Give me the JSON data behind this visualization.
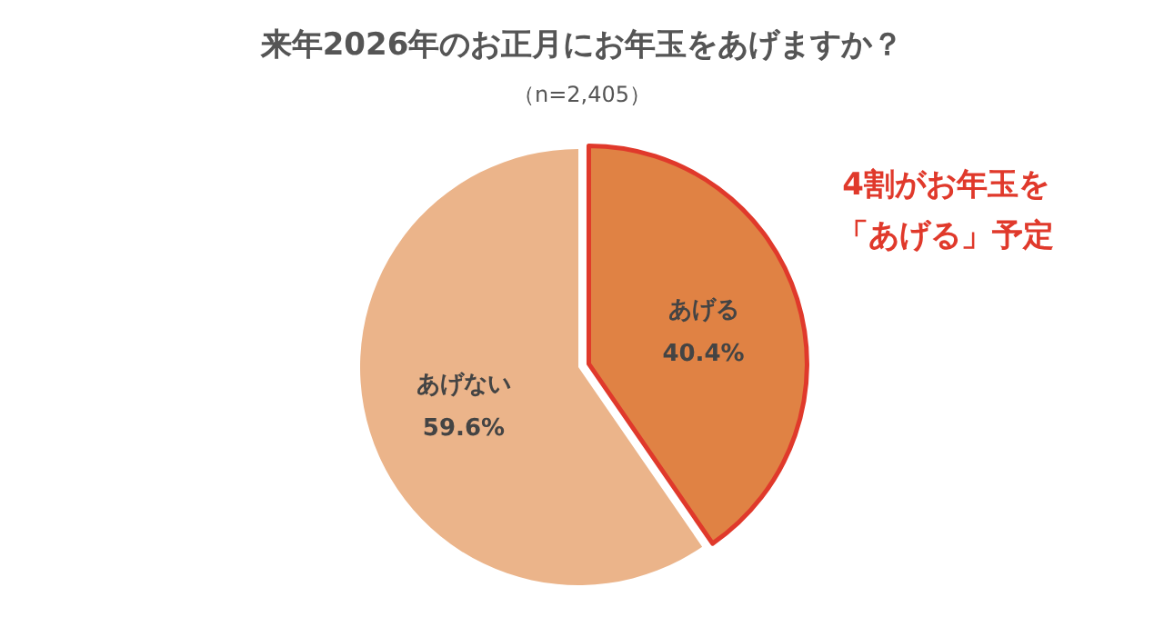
{
  "chart_data": {
    "type": "pie",
    "title": "来年2026年のお正月にお年玉をあげますか？",
    "subtitle": "（n=2,405）",
    "categories": [
      "あげる",
      "あげない"
    ],
    "values": [
      40.4,
      59.6
    ],
    "colors": [
      "#e08244",
      "#ebb48a"
    ],
    "value_labels": [
      "40.4%",
      "59.6%"
    ],
    "annotations": [
      "4割がお年玉を",
      "「あげる」予定"
    ]
  }
}
